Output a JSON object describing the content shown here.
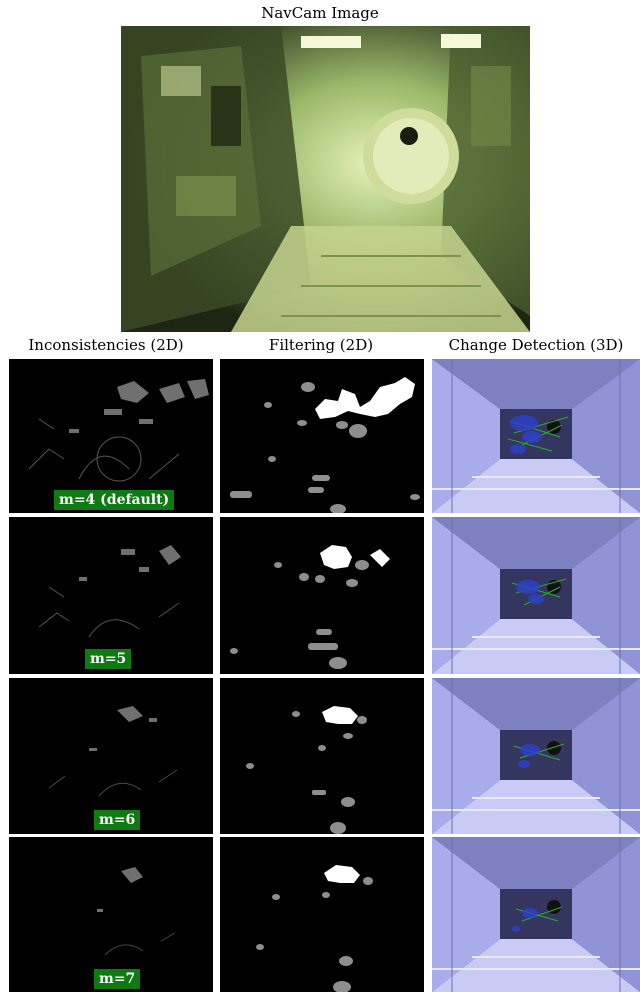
{
  "figure": {
    "top_title": "NavCam Image",
    "columns": [
      {
        "title": "Inconsistencies (2D)"
      },
      {
        "title": "Filtering (2D)"
      },
      {
        "title": "Change Detection (3D)"
      }
    ],
    "rows": [
      {
        "label": "m=4 (default)"
      },
      {
        "label": "m=5"
      },
      {
        "label": "m=6"
      },
      {
        "label": "m=7"
      }
    ]
  },
  "colors": {
    "label_bg": "#0e7a12",
    "navcam_tint": "#9ab86a",
    "render_tint": "#a9aee6"
  }
}
